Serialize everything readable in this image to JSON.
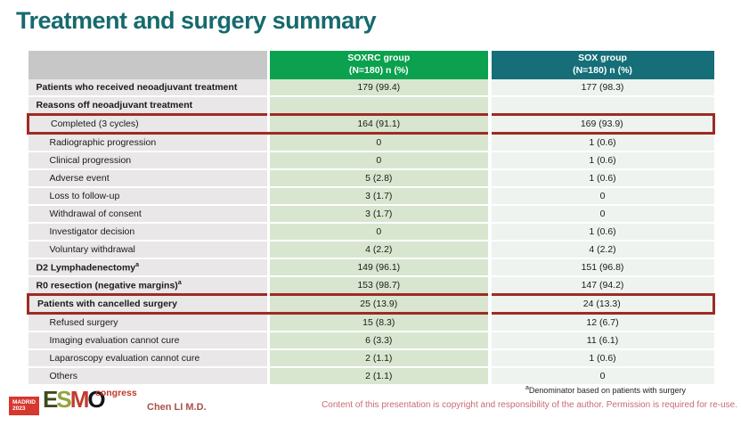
{
  "slide": {
    "title": "Treatment and surgery summary",
    "footnote_sup": "a",
    "footnote": "Denominator based on patients with surgery",
    "copyright": "Content of this presentation is copyright and responsibility of the author. Permission is required for re-use.",
    "presenter": "Chen LI M.D."
  },
  "logo": {
    "location": "MADRID",
    "year": "2023",
    "letters": [
      "E",
      "S",
      "M",
      "O"
    ],
    "event": "congress"
  },
  "colors": {
    "title_teal": "#166a6d",
    "soxrc_header_green": "#0ba14e",
    "sox_header_teal": "#156e78",
    "label_column_gray": "#e9e7e8",
    "soxrc_column_green": "#d8e6cf",
    "sox_column_gray": "#eef3ef",
    "highlight_red": "#9e2b24",
    "copyright_rose": "#c96a73",
    "presenter_red": "#a8514a"
  },
  "table": {
    "columns": [
      {
        "label": "",
        "sub": ""
      },
      {
        "label": "SOXRC group",
        "sub": "(N=180)  n (%)"
      },
      {
        "label": "SOX group",
        "sub": "(N=180)  n (%)"
      }
    ],
    "rows": [
      {
        "label": "Patients who received neoadjuvant treatment",
        "soxrc": "179 (99.4)",
        "sox": "177 (98.3)",
        "bold": true,
        "indent": false,
        "highlight": false
      },
      {
        "label": "Reasons off neoadjuvant treatment",
        "soxrc": "",
        "sox": "",
        "bold": true,
        "indent": false,
        "highlight": false
      },
      {
        "label": "Completed (3 cycles)",
        "soxrc": "164 (91.1)",
        "sox": "169 (93.9)",
        "bold": false,
        "indent": true,
        "highlight": true
      },
      {
        "label": "Radiographic progression",
        "soxrc": "0",
        "sox": "1 (0.6)",
        "bold": false,
        "indent": true,
        "highlight": false
      },
      {
        "label": "Clinical progression",
        "soxrc": "0",
        "sox": "1 (0.6)",
        "bold": false,
        "indent": true,
        "highlight": false
      },
      {
        "label": "Adverse event",
        "soxrc": "5 (2.8)",
        "sox": "1 (0.6)",
        "bold": false,
        "indent": true,
        "highlight": false
      },
      {
        "label": "Loss to follow-up",
        "soxrc": "3 (1.7)",
        "sox": "0",
        "bold": false,
        "indent": true,
        "highlight": false
      },
      {
        "label": "Withdrawal of consent",
        "soxrc": "3 (1.7)",
        "sox": "0",
        "bold": false,
        "indent": true,
        "highlight": false
      },
      {
        "label": "Investigator decision",
        "soxrc": "0",
        "sox": "1 (0.6)",
        "bold": false,
        "indent": true,
        "highlight": false
      },
      {
        "label": "Voluntary withdrawal",
        "soxrc": "4 (2.2)",
        "sox": "4 (2.2)",
        "bold": false,
        "indent": true,
        "highlight": false
      },
      {
        "label": "D2 Lymphadenectomy",
        "sup": "a",
        "soxrc": "149 (96.1)",
        "sox": "151 (96.8)",
        "bold": true,
        "indent": false,
        "highlight": false
      },
      {
        "label": "R0 resection (negative margins)",
        "sup": "a",
        "soxrc": "153 (98.7)",
        "sox": "147 (94.2)",
        "bold": true,
        "indent": false,
        "highlight": false
      },
      {
        "label": "Patients with cancelled surgery",
        "soxrc": "25 (13.9)",
        "sox": "24 (13.3)",
        "bold": true,
        "indent": false,
        "highlight": true
      },
      {
        "label": "Refused surgery",
        "soxrc": "15 (8.3)",
        "sox": "12 (6.7)",
        "bold": false,
        "indent": true,
        "highlight": false
      },
      {
        "label": "Imaging evaluation cannot cure",
        "soxrc": "6 (3.3)",
        "sox": "11 (6.1)",
        "bold": false,
        "indent": true,
        "highlight": false
      },
      {
        "label": "Laparoscopy evaluation cannot cure",
        "soxrc": "2 (1.1)",
        "sox": "1 (0.6)",
        "bold": false,
        "indent": true,
        "highlight": false
      },
      {
        "label": "Others",
        "soxrc": "2 (1.1)",
        "sox": "0",
        "bold": false,
        "indent": true,
        "highlight": false
      }
    ]
  }
}
